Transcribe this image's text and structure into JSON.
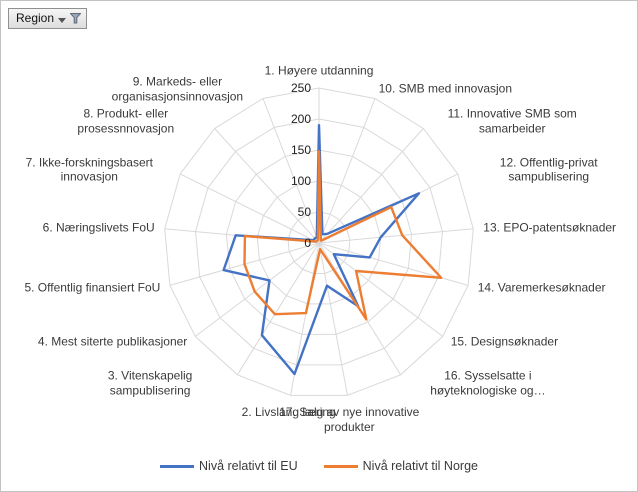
{
  "filter_button": {
    "label": "Region"
  },
  "chart_data": {
    "type": "radar",
    "title": "",
    "categories": [
      "1. Høyere utdanning",
      "10. SMB med innovasjon",
      "11. Innovative SMB som samarbeider",
      "12. Offentlig-privat sampublisering",
      "13. EPO-patentsøknader",
      "14. Varemerkesøknader",
      "15. Designsøknader",
      "16. Sysselsatte i høyteknologiske og…",
      "17. Salg av nye innovative produkter",
      "2. Livslang læring",
      "3. Vitenskapelig sampublisering",
      "4. Mest siterte publikasjoner",
      "5. Offentlig finansiert FoU",
      "6. Næringslivets FoU",
      "7. Ikke-forskningsbasert innovasjon",
      "8. Produkt- eller prosessnnovasjon",
      "9. Markeds- eller organisasjonsinnovasjon"
    ],
    "series": [
      {
        "name": "Nivå relativt til EU",
        "color": "#4472C4",
        "values": [
          190,
          15,
          20,
          180,
          100,
          85,
          30,
          120,
          70,
          215,
          175,
          100,
          160,
          135,
          10,
          10,
          10
        ]
      },
      {
        "name": "Nivå relativt til Norge",
        "color": "#ED7D31",
        "values": [
          148,
          8,
          5,
          130,
          135,
          205,
          75,
          145,
          10,
          115,
          135,
          130,
          125,
          120,
          5,
          5,
          5
        ]
      }
    ],
    "axis": {
      "min": 0,
      "max": 250,
      "step": 50,
      "tick_labels": [
        "0",
        "50",
        "100",
        "150",
        "200",
        "250"
      ]
    },
    "grid": true,
    "legend_position": "bottom",
    "grid_color": "#D9D9D9"
  }
}
